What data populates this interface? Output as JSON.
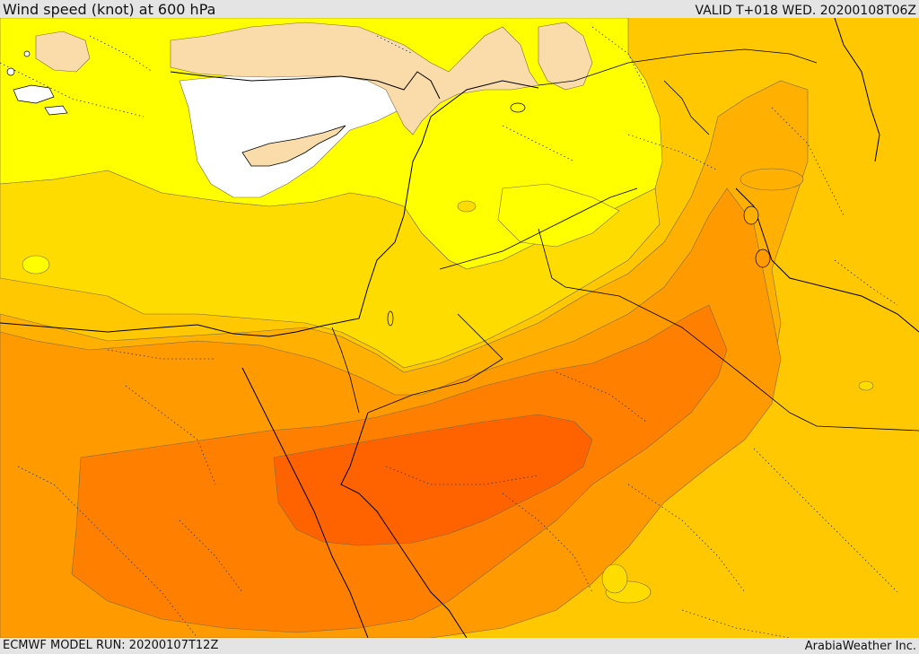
{
  "header": {
    "title": "Wind speed (knot) at 600 hPa",
    "valid_time": "VALID T+018 WED. 20200108T06Z"
  },
  "footer": {
    "model_run": "ECMWF MODEL RUN: 20200107T12Z",
    "credit": "ArabiaWeather Inc."
  },
  "map": {
    "colors": {
      "white": "#ffffff",
      "yellow": "#ffff00",
      "gold": "#ffdc00",
      "amber": "#ffc800",
      "orange_light": "#ffb000",
      "orange": "#ff9a00",
      "orange_dark": "#ff8000",
      "red_orange": "#ff6300",
      "land_tan": "#fadcaa",
      "border": "#000000"
    }
  }
}
